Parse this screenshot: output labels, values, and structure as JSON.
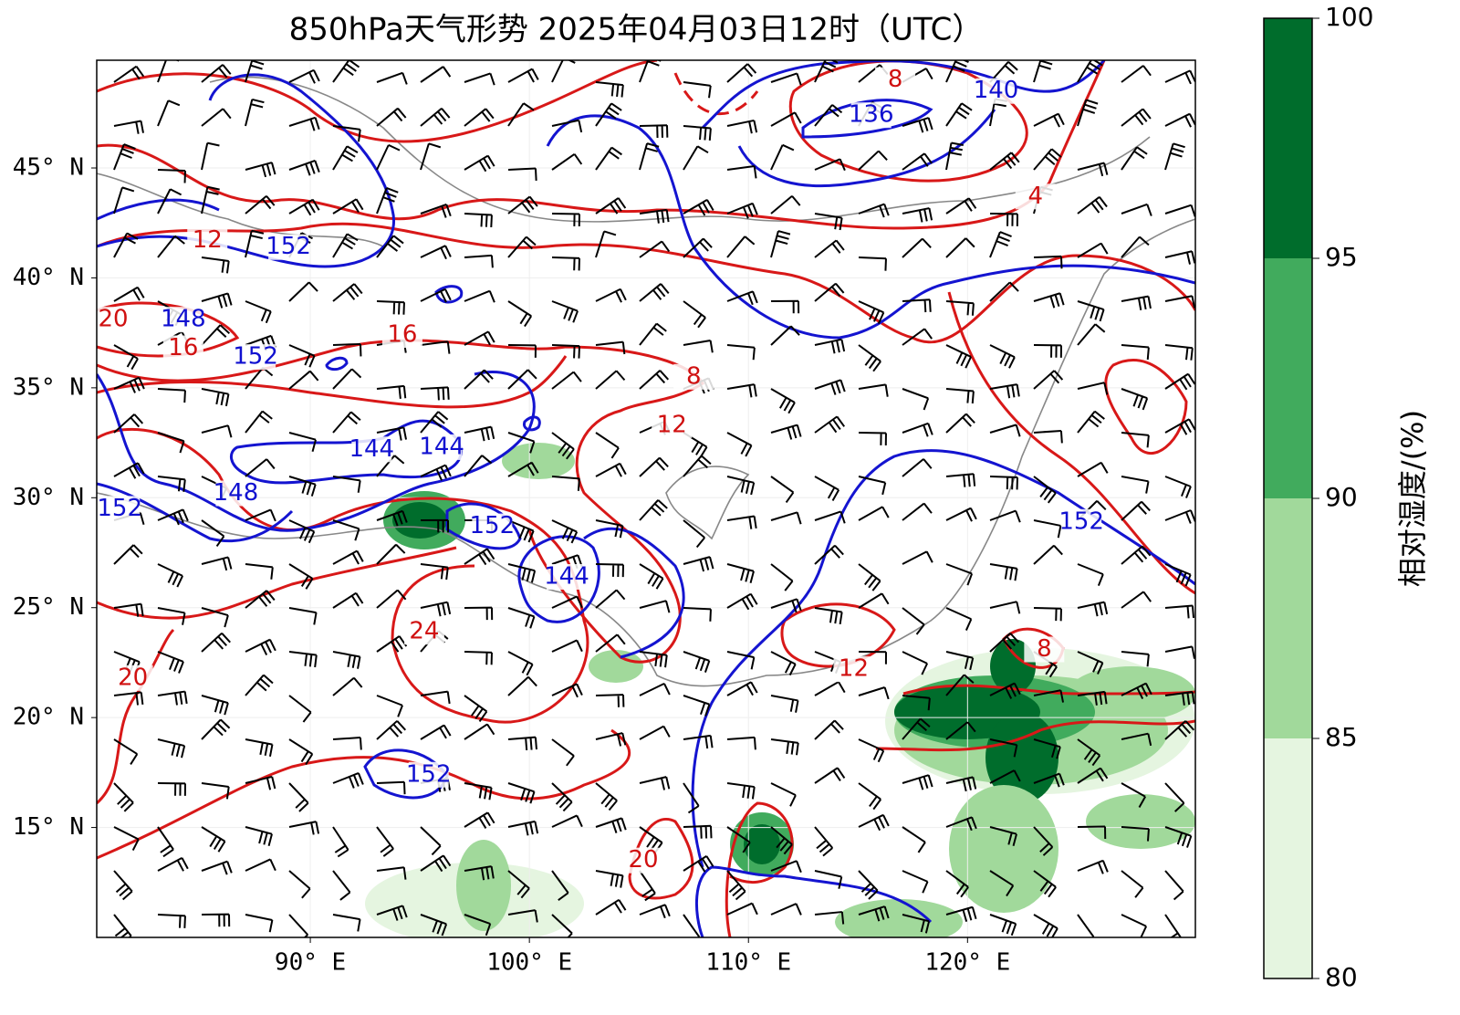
{
  "map": {
    "title": "850hPa天气形势 2025年04月03日12时（UTC）",
    "xlim": [
      80.25,
      130.4
    ],
    "ylim": [
      10,
      49.9
    ],
    "xticks": [
      {
        "value": 90,
        "label": "90° E"
      },
      {
        "value": 100,
        "label": "100° E"
      },
      {
        "value": 110,
        "label": "110° E"
      },
      {
        "value": 120,
        "label": "120° E"
      }
    ],
    "yticks": [
      {
        "value": 15,
        "label": "15° N"
      },
      {
        "value": 20,
        "label": "20° N"
      },
      {
        "value": 25,
        "label": "25° N"
      },
      {
        "value": 30,
        "label": "30° N"
      },
      {
        "value": 35,
        "label": "35° N"
      },
      {
        "value": 40,
        "label": "40° N"
      },
      {
        "value": 45,
        "label": "45° N"
      }
    ],
    "colorbar": {
      "label": "相对湿度/(%)",
      "lim": [
        80,
        100
      ],
      "ticks": [
        80,
        85,
        90,
        95,
        100
      ],
      "colors": [
        "#e5f5e0",
        "#a1d99b",
        "#41ab5d",
        "#006d2c"
      ]
    },
    "contour_labels": [
      {
        "text": "152",
        "color": "#1010d0",
        "lon": 89.0,
        "lat": 41.4
      },
      {
        "text": "12",
        "color": "#d01010",
        "lon": 85.3,
        "lat": 41.7
      },
      {
        "text": "20",
        "color": "#d01010",
        "lon": 81.0,
        "lat": 38.1
      },
      {
        "text": "148",
        "color": "#1010d0",
        "lon": 84.2,
        "lat": 38.1
      },
      {
        "text": "16",
        "color": "#d01010",
        "lon": 84.2,
        "lat": 36.8
      },
      {
        "text": "152",
        "color": "#1010d0",
        "lon": 87.5,
        "lat": 36.4
      },
      {
        "text": "16",
        "color": "#d01010",
        "lon": 94.2,
        "lat": 37.4
      },
      {
        "text": "8",
        "color": "#d01010",
        "lon": 107.5,
        "lat": 35.5
      },
      {
        "text": "12",
        "color": "#d01010",
        "lon": 106.5,
        "lat": 33.3
      },
      {
        "text": "144",
        "color": "#1010d0",
        "lon": 92.8,
        "lat": 32.2
      },
      {
        "text": "144",
        "color": "#1010d0",
        "lon": 96.0,
        "lat": 32.3
      },
      {
        "text": "148",
        "color": "#1010d0",
        "lon": 86.6,
        "lat": 30.2
      },
      {
        "text": "152",
        "color": "#1010d0",
        "lon": 81.3,
        "lat": 29.5
      },
      {
        "text": "152",
        "color": "#1010d0",
        "lon": 98.3,
        "lat": 28.7
      },
      {
        "text": "144",
        "color": "#1010d0",
        "lon": 101.7,
        "lat": 26.4
      },
      {
        "text": "24",
        "color": "#d01010",
        "lon": 95.2,
        "lat": 23.9
      },
      {
        "text": "20",
        "color": "#d01010",
        "lon": 81.9,
        "lat": 21.8
      },
      {
        "text": "152",
        "color": "#1010d0",
        "lon": 95.4,
        "lat": 17.4
      },
      {
        "text": "20",
        "color": "#d01010",
        "lon": 105.2,
        "lat": 13.5
      },
      {
        "text": "12",
        "color": "#d01010",
        "lon": 114.8,
        "lat": 22.2
      },
      {
        "text": "8",
        "color": "#d01010",
        "lon": 123.5,
        "lat": 23.1
      },
      {
        "text": "152",
        "color": "#1010d0",
        "lon": 125.2,
        "lat": 28.9
      },
      {
        "text": "4",
        "color": "#d01010",
        "lon": 123.1,
        "lat": 43.7
      },
      {
        "text": "140",
        "color": "#1010d0",
        "lon": 121.3,
        "lat": 48.5
      },
      {
        "text": "136",
        "color": "#1010d0",
        "lon": 115.6,
        "lat": 47.4
      },
      {
        "text": "8",
        "color": "#d01010",
        "lon": 116.7,
        "lat": 49.0
      }
    ]
  }
}
